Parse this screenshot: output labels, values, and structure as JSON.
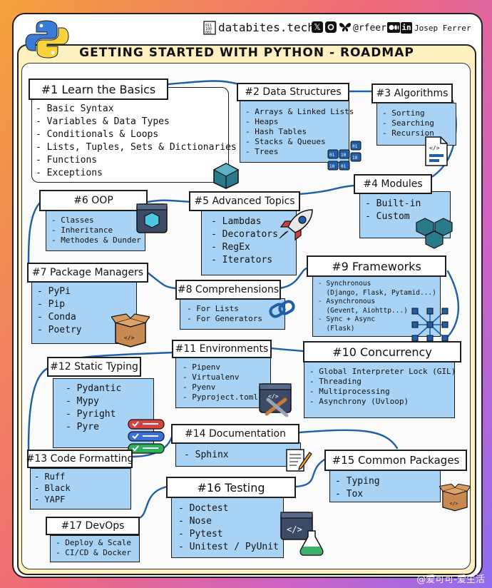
{
  "header": {
    "site": "databites.tech",
    "handle": "@rfeers",
    "author": "Josep Ferrer",
    "title": "GETTING STARTED WITH PYTHON - ROADMAP",
    "social_x": "𝕏",
    "social_in": "in"
  },
  "steps": [
    {
      "title": "#1 Learn the Basics",
      "items": [
        "- Basic Syntax",
        "- Variables & Data Types",
        "- Conditionals & Loops",
        "- Lists, Tuples, Sets & Dictionaries",
        "- Functions",
        "- Exceptions"
      ]
    },
    {
      "title": "#2 Data Structures",
      "items": [
        "- Arrays & Linked Lists",
        "- Heaps",
        "- Hash Tables",
        "- Stacks & Queues",
        "- Trees"
      ]
    },
    {
      "title": "#3 Algorithms",
      "items": [
        "- Sorting",
        "- Searching",
        "- Recursion"
      ]
    },
    {
      "title": "#4 Modules",
      "items": [
        "- Built-in",
        "- Custom"
      ]
    },
    {
      "title": "#5 Advanced Topics",
      "items": [
        "- Lambdas",
        "- Decorators",
        "- RegEx",
        "- Iterators"
      ]
    },
    {
      "title": "#6 OOP",
      "items": [
        "- Classes",
        "- Inheritance",
        "- Methodes & Dunder"
      ]
    },
    {
      "title": "#7 Package Managers",
      "items": [
        "- PyPi",
        "- Pip",
        "- Conda",
        "- Poetry"
      ]
    },
    {
      "title": "#8 Comprehensions",
      "items": [
        "- For Lists",
        "- For Generators"
      ]
    },
    {
      "title": "#9 Frameworks",
      "items": [
        "- Synchronous",
        "  (Django, Flask, Pytamid...)",
        "- Asynchronous",
        "  (Gevent, Aiohttp...)",
        "- Sync + Async",
        "  (Flask)"
      ]
    },
    {
      "title": "#10 Concurrency",
      "items": [
        "- Global Interpreter Lock (GIL)",
        "- Threading",
        "- Multiprocessing",
        "- Asynchrony (Uvloop)"
      ]
    },
    {
      "title": "#11 Environments",
      "items": [
        "- Pipenv",
        "- Virtualenv",
        "- Pyenv",
        "- Pyproject.toml"
      ]
    },
    {
      "title": "#12 Static Typing",
      "items": [
        "- Pydantic",
        "- Mypy",
        "- Pyright",
        "- Pyre"
      ]
    },
    {
      "title": "#13 Code Formatting",
      "items": [
        "- Ruff",
        "- Black",
        "- YAPF"
      ]
    },
    {
      "title": "#14 Documentation",
      "items": [
        "- Sphinx"
      ]
    },
    {
      "title": "#15 Common Packages",
      "items": [
        "- Typing",
        "- Tox"
      ]
    },
    {
      "title": "#16 Testing",
      "items": [
        "- Doctest",
        "- Nose",
        "- Pytest",
        "- Unitest / PyUnit"
      ]
    },
    {
      "title": "#17 DevOps",
      "items": [
        "- Deploy & Scale",
        "- CI/CD & Docker"
      ]
    }
  ],
  "watermark": "@爱可可-爱生活"
}
